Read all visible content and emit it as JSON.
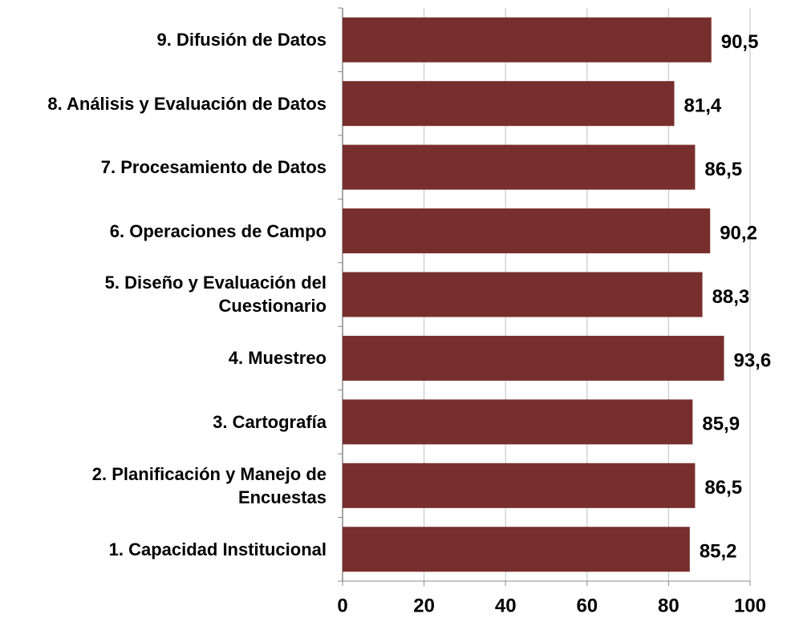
{
  "chart_data": {
    "type": "bar",
    "orientation": "horizontal",
    "categories": [
      "1. Capacidad Institucional",
      "2. Planificación y Manejo de Encuestas",
      "3. Cartografía",
      "4. Muestreo",
      "5. Diseño y Evaluación del Cuestionario",
      "6. Operaciones de Campo",
      "7. Procesamiento de Datos",
      "8. Análisis y Evaluación de Datos",
      "9. Difusión de Datos"
    ],
    "values": [
      85.2,
      86.5,
      85.9,
      93.6,
      88.3,
      90.2,
      86.5,
      81.4,
      90.5
    ],
    "value_labels": [
      "85,2",
      "86,5",
      "85,9",
      "93,6",
      "88,3",
      "90,2",
      "86,5",
      "81,4",
      "90,5"
    ],
    "color": "#772f2d",
    "xlim": [
      0,
      100
    ],
    "xticks": [
      0,
      20,
      40,
      60,
      80,
      100
    ],
    "grid": true
  }
}
